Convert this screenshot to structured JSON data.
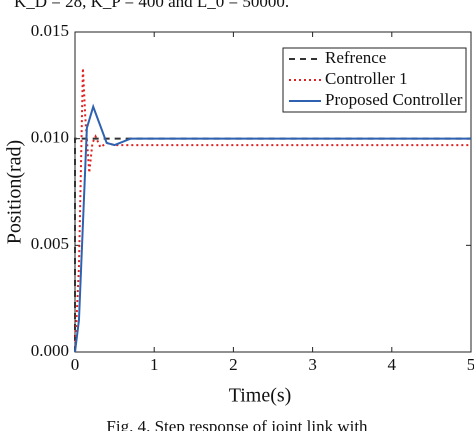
{
  "header_text": "K_D = 28, K_P = 400 and L_0 = 50000.",
  "caption": "Fig. 4. Step response of joint link with",
  "chart_data": {
    "type": "line",
    "xlabel": "Time(s)",
    "ylabel": "Position(rad)",
    "xlim": [
      0,
      5
    ],
    "ylim": [
      0,
      0.015
    ],
    "xticks": [
      0,
      1,
      2,
      3,
      4,
      5
    ],
    "yticks": [
      {
        "value": 0,
        "label": "0.000"
      },
      {
        "value": 0.005,
        "label": "0.005"
      },
      {
        "value": 0.01,
        "label": "0.010"
      },
      {
        "value": 0.015,
        "label": "0.015"
      }
    ],
    "legend": "upper right",
    "series": [
      {
        "name": "Refrence",
        "color": "#333333",
        "dash": "6,5",
        "x": [
          0,
          0,
          5
        ],
        "values": [
          0,
          0.01,
          0.01
        ]
      },
      {
        "name": "Controller 1",
        "color": "#e02020",
        "dash": "2,3",
        "x": [
          0,
          0.05,
          0.1,
          0.13,
          0.18,
          0.22,
          0.26,
          0.32,
          0.4,
          0.5,
          1,
          5
        ],
        "values": [
          0,
          0.004,
          0.0133,
          0.011,
          0.0084,
          0.0098,
          0.0101,
          0.0096,
          0.0098,
          0.0097,
          0.0097,
          0.0097
        ]
      },
      {
        "name": "Proposed Controller",
        "color": "#2e62b0",
        "dash": "",
        "x": [
          0,
          0.05,
          0.1,
          0.15,
          0.23,
          0.3,
          0.4,
          0.5,
          0.7,
          1,
          5
        ],
        "values": [
          0,
          0.0015,
          0.006,
          0.0105,
          0.0115,
          0.0108,
          0.0098,
          0.0097,
          0.01,
          0.01,
          0.01
        ]
      }
    ]
  }
}
